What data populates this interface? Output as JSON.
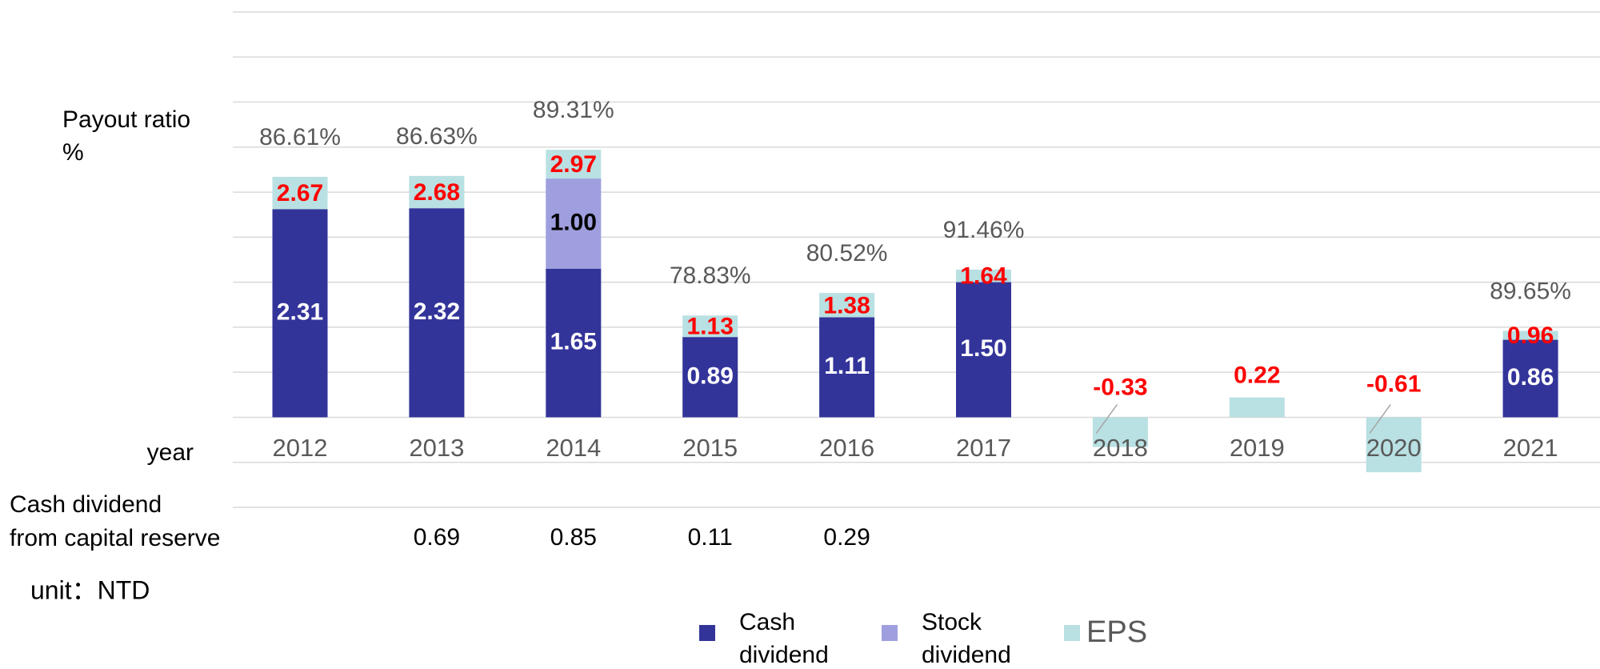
{
  "chart_data": {
    "type": "bar",
    "categories": [
      "2012",
      "2013",
      "2014",
      "2015",
      "2016",
      "2017",
      "2018",
      "2019",
      "2020",
      "2021"
    ],
    "series": [
      {
        "name": "Cash dividend",
        "color": "#33349a",
        "values": [
          2.31,
          2.32,
          1.65,
          0.89,
          1.11,
          1.5,
          null,
          null,
          null,
          0.86
        ],
        "value_labels": [
          "2.31",
          "2.32",
          "1.65",
          "0.89",
          "1.11",
          "1.50",
          null,
          null,
          null,
          "0.86"
        ]
      },
      {
        "name": "Stock dividend",
        "color": "#9f9fdf",
        "values": [
          null,
          null,
          1.0,
          null,
          null,
          null,
          null,
          null,
          null,
          null
        ],
        "value_labels": [
          null,
          null,
          "1.00",
          null,
          null,
          null,
          null,
          null,
          null,
          null
        ]
      },
      {
        "name": "EPS",
        "color": "#b9e0e2",
        "values": [
          2.67,
          2.68,
          2.97,
          1.13,
          1.38,
          1.64,
          -0.33,
          0.22,
          -0.61,
          0.96
        ]
      }
    ],
    "payout_ratio_label": "Payout ratio %",
    "payout_ratio": [
      86.61,
      86.63,
      89.31,
      78.83,
      80.52,
      91.46,
      null,
      null,
      null,
      89.65
    ],
    "payout_ratio_labels": [
      "86.61%",
      "86.63%",
      "89.31%",
      "78.83%",
      "80.52%",
      "91.46%",
      null,
      null,
      null,
      "89.65%"
    ],
    "x_label": "year",
    "capital_reserve_label": "Cash dividend from capital reserve",
    "capital_reserve": [
      null,
      0.69,
      0.85,
      0.11,
      0.29,
      null,
      null,
      null,
      null,
      null
    ],
    "unit": "unit：NTD",
    "ylim": [
      -1,
      4.5
    ],
    "yticks": [
      -1,
      -0.5,
      0,
      0.5,
      1,
      1.5,
      2,
      2.5,
      3,
      3.5,
      4,
      4.5
    ],
    "grid": true
  }
}
